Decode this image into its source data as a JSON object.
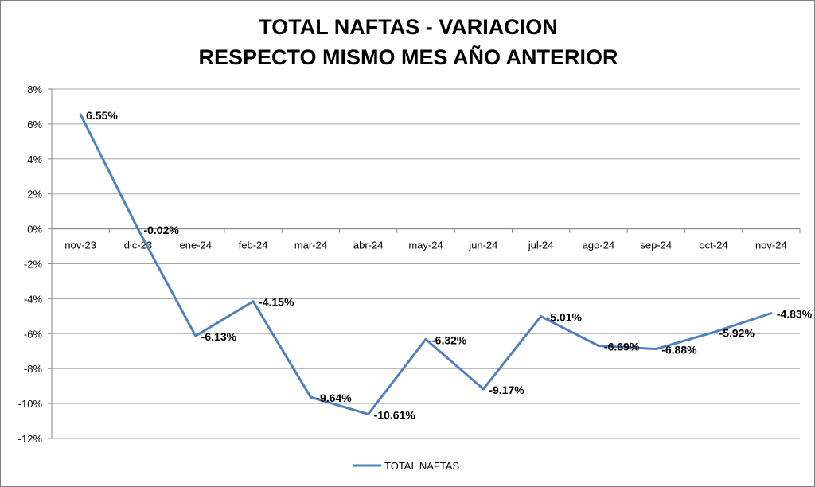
{
  "chart_data": {
    "type": "line",
    "title_lines": [
      "TOTAL NAFTAS - VARIACION",
      "RESPECTO MISMO MES AÑO ANTERIOR"
    ],
    "categories": [
      "nov-23",
      "dic-23",
      "ene-24",
      "feb-24",
      "mar-24",
      "abr-24",
      "may-24",
      "jun-24",
      "jul-24",
      "ago-24",
      "sep-24",
      "oct-24",
      "nov-24"
    ],
    "series": [
      {
        "name": "TOTAL NAFTAS",
        "values": [
          6.55,
          -0.02,
          -6.13,
          -4.15,
          -9.64,
          -10.61,
          -6.32,
          -9.17,
          -5.01,
          -6.69,
          -6.88,
          -5.92,
          -4.83
        ],
        "labels": [
          "6.55%",
          "-0.02%",
          "-6.13%",
          "-4.15%",
          "-9.64%",
          "-10.61%",
          "-6.32%",
          "-9.17%",
          "-5.01%",
          "-6.69%",
          "-6.88%",
          "-5.92%",
          "-4.83%"
        ],
        "color": "#4f81bd"
      }
    ],
    "yticks": [
      8,
      6,
      4,
      2,
      0,
      -2,
      -4,
      -6,
      -8,
      -10,
      -12
    ],
    "ytick_labels": [
      "8%",
      "6%",
      "4%",
      "2%",
      "0%",
      "-2%",
      "-4%",
      "-6%",
      "-8%",
      "-10%",
      "-12%"
    ],
    "ylim": [
      -12,
      8
    ],
    "xlabel": "",
    "ylabel": "",
    "grid": true,
    "legend_position": "bottom",
    "gridline_color": "#a6a6a6"
  }
}
